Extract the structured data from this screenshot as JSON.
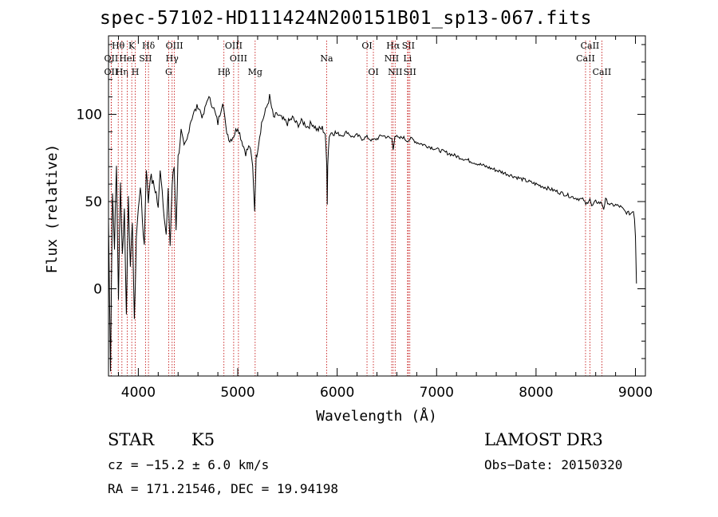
{
  "title": "spec-57102-HD111424N200151B01_sp13-067.fits",
  "chart_data": {
    "type": "line",
    "title": "spec-57102-HD111424N200151B01_sp13-067.fits",
    "xlabel": "Wavelength (Å)",
    "ylabel": "Flux (relative)",
    "xlim": [
      3700,
      9100
    ],
    "ylim": [
      -50,
      145
    ],
    "x_ticks": [
      4000,
      5000,
      6000,
      7000,
      8000,
      9000
    ],
    "x_tick_labels": [
      "4000",
      "5000",
      "6000",
      "7000",
      "8000",
      "9000"
    ],
    "y_ticks": [
      0,
      50,
      100
    ],
    "y_tick_labels": [
      "0",
      "50",
      "100"
    ],
    "series": [
      {
        "name": "spectrum",
        "x": [
          3700,
          3720,
          3740,
          3760,
          3780,
          3800,
          3820,
          3840,
          3860,
          3880,
          3900,
          3920,
          3940,
          3960,
          3980,
          4000,
          4020,
          4040,
          4060,
          4080,
          4100,
          4120,
          4150,
          4180,
          4200,
          4220,
          4250,
          4280,
          4300,
          4320,
          4340,
          4360,
          4380,
          4400,
          4430,
          4460,
          4490,
          4520,
          4550,
          4600,
          4650,
          4700,
          4750,
          4800,
          4850,
          4880,
          4920,
          4960,
          5000,
          5040,
          5080,
          5120,
          5150,
          5170,
          5185,
          5200,
          5240,
          5280,
          5320,
          5360,
          5400,
          5450,
          5500,
          5550,
          5600,
          5650,
          5700,
          5750,
          5800,
          5850,
          5880,
          5895,
          5900,
          5905,
          5920,
          5950,
          6000,
          6050,
          6100,
          6150,
          6200,
          6250,
          6300,
          6350,
          6400,
          6450,
          6500,
          6550,
          6563,
          6580,
          6620,
          6660,
          6700,
          6750,
          6800,
          6900,
          7000,
          7100,
          7200,
          7300,
          7400,
          7500,
          7600,
          7700,
          7800,
          7900,
          8000,
          8100,
          8200,
          8300,
          8400,
          8480,
          8500,
          8542,
          8560,
          8600,
          8662,
          8680,
          8700,
          8750,
          8800,
          8850,
          8900,
          8950,
          8980,
          8990,
          9000,
          9010
        ],
        "values": [
          40,
          -45,
          55,
          25,
          70,
          -5,
          60,
          20,
          45,
          -15,
          55,
          10,
          40,
          -20,
          30,
          45,
          60,
          40,
          25,
          70,
          50,
          65,
          60,
          55,
          45,
          70,
          50,
          30,
          55,
          25,
          60,
          70,
          35,
          75,
          90,
          80,
          85,
          95,
          100,
          105,
          98,
          110,
          105,
          95,
          108,
          92,
          85,
          88,
          93,
          85,
          78,
          82,
          70,
          45,
          75,
          80,
          95,
          102,
          110,
          98,
          100,
          97,
          95,
          98,
          94,
          96,
          93,
          95,
          91,
          92,
          89,
          70,
          50,
          72,
          88,
          90,
          89,
          88,
          90,
          87,
          88,
          86,
          87,
          85,
          86,
          88,
          87,
          86,
          80,
          88,
          86,
          87,
          85,
          86,
          84,
          82,
          80,
          78,
          76,
          74,
          72,
          70,
          68,
          66,
          64,
          62,
          60,
          58,
          56,
          54,
          52,
          51,
          48,
          52,
          47,
          50,
          49,
          46,
          51,
          48,
          48,
          47,
          44,
          43,
          45,
          40,
          30,
          3
        ]
      }
    ],
    "lines": [
      {
        "label": "Hθ",
        "x": 3798,
        "row": 1
      },
      {
        "label": "OII",
        "x": 3727,
        "row": 2
      },
      {
        "label": "OII",
        "x": 3727,
        "row": 3
      },
      {
        "label": "Hη",
        "x": 3835,
        "row": 3
      },
      {
        "label": "HeI",
        "x": 3889,
        "row": 2
      },
      {
        "label": "K",
        "x": 3934,
        "row": 1
      },
      {
        "label": "H",
        "x": 3969,
        "row": 3
      },
      {
        "label": "Hδ",
        "x": 4102,
        "row": 1
      },
      {
        "label": "SII",
        "x": 4072,
        "row": 2
      },
      {
        "label": "OIII",
        "x": 4363,
        "row": 1
      },
      {
        "label": "Hγ",
        "x": 4340,
        "row": 2
      },
      {
        "label": "G",
        "x": 4305,
        "row": 3
      },
      {
        "label": "OIII",
        "x": 4959,
        "row": 1
      },
      {
        "label": "OIII",
        "x": 5007,
        "row": 2
      },
      {
        "label": "Hβ",
        "x": 4861,
        "row": 3
      },
      {
        "label": "Mg",
        "x": 5175,
        "row": 3
      },
      {
        "label": "Na",
        "x": 5894,
        "row": 2
      },
      {
        "label": "OI",
        "x": 6300,
        "row": 1
      },
      {
        "label": "OI",
        "x": 6364,
        "row": 3
      },
      {
        "label": "Hα",
        "x": 6563,
        "row": 1
      },
      {
        "label": "NII",
        "x": 6548,
        "row": 2
      },
      {
        "label": "NII",
        "x": 6583,
        "row": 3
      },
      {
        "label": "SII",
        "x": 6716,
        "row": 1
      },
      {
        "label": "Li",
        "x": 6708,
        "row": 2
      },
      {
        "label": "SII",
        "x": 6731,
        "row": 3
      },
      {
        "label": "CaII",
        "x": 8542,
        "row": 1
      },
      {
        "label": "CaII",
        "x": 8498,
        "row": 2
      },
      {
        "label": "CaII",
        "x": 8662,
        "row": 3
      }
    ]
  },
  "info": {
    "object_type": "STAR",
    "subclass": "K5",
    "survey": "LAMOST DR3",
    "cz": "cz = −15.2 ± 6.0 km/s",
    "obs_date": "Obs−Date: 20150320",
    "coords": "RA = 171.21546, DEC =  19.94198"
  }
}
